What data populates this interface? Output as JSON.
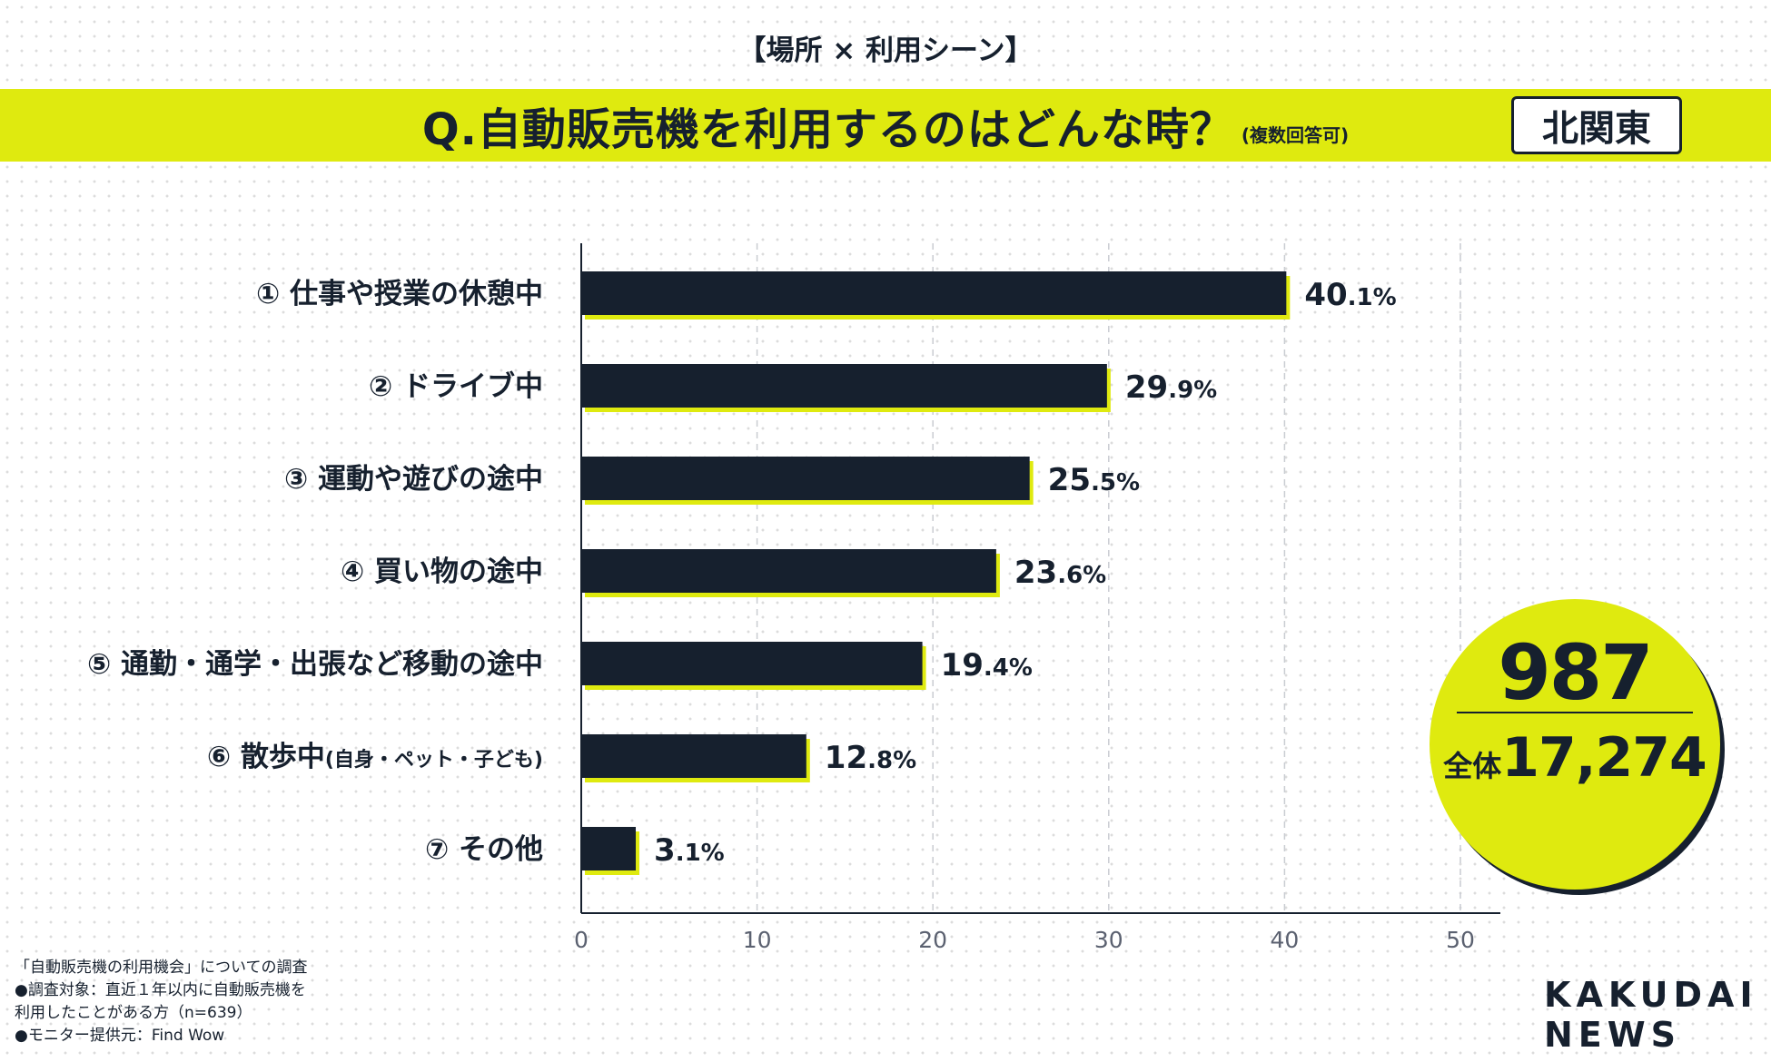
{
  "header": {
    "category": "【場所 × 利用シーン】",
    "question": "Q.自動販売機を利用するのはどんな時？",
    "question_note": "(複数回答可)",
    "region": "北関東"
  },
  "chart_data": {
    "type": "bar",
    "orientation": "horizontal",
    "categories": [
      "① 仕事や授業の休憩中",
      "② ドライブ中",
      "③ 運動や遊びの途中",
      "④ 買い物の途中",
      "⑤ 通勤・通学・出張など移動の途中",
      "⑥ 散歩中",
      "⑦ その他"
    ],
    "category_notes": [
      "",
      "",
      "",
      "",
      "",
      "(自身・ペット・子ども)",
      ""
    ],
    "values": [
      40.1,
      29.9,
      25.5,
      23.6,
      19.4,
      12.8,
      3.1
    ],
    "value_suffix": "%",
    "xlim": [
      0,
      50
    ],
    "xticks": [
      0,
      10,
      20,
      30,
      40,
      50
    ],
    "grid": true,
    "bar_color": "#16202e",
    "shadow_color": "#dfea0f"
  },
  "summary": {
    "count": "987",
    "total_label": "全体",
    "total_value": "17,274"
  },
  "notes": [
    "「自動販売機の利用機会」についての調査",
    "●調査対象：直近１年以内に自動販売機を",
    "利用したことがある方（n=639）",
    "●モニター提供元：Find Wow"
  ],
  "logo": {
    "line1": "KAKUDAI",
    "line2": "NEWS"
  }
}
